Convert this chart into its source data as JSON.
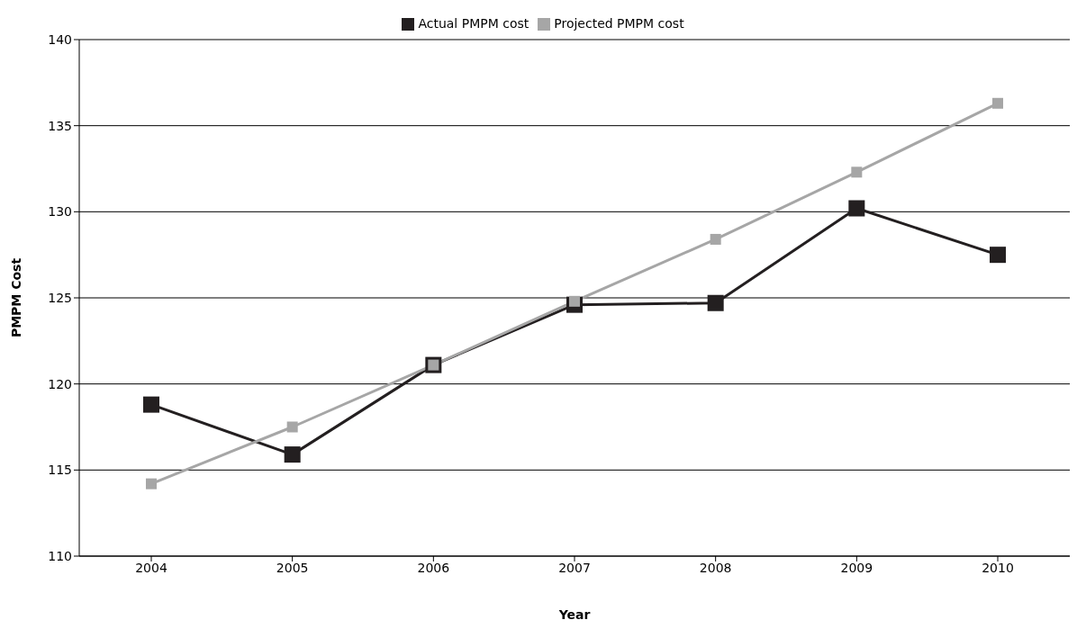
{
  "chart_data": {
    "type": "line",
    "xlabel": "Year",
    "ylabel": "PMPM Cost",
    "categories": [
      "2004",
      "2005",
      "2006",
      "2007",
      "2008",
      "2009",
      "2010"
    ],
    "series": [
      {
        "name": "Actual  PMPM cost",
        "color": "#231f20",
        "values": [
          118.8,
          115.9,
          121.1,
          124.6,
          124.7,
          130.2,
          127.5
        ]
      },
      {
        "name": "Projected PMPM cost",
        "color": "#a6a6a6",
        "values": [
          114.2,
          117.5,
          121.1,
          124.8,
          128.4,
          132.3,
          136.3
        ]
      }
    ],
    "ylim": [
      110,
      140
    ],
    "yticks": [
      110,
      115,
      120,
      125,
      130,
      135,
      140
    ],
    "grid": "y",
    "legend": "top",
    "marker": "square",
    "line_style": "solid"
  }
}
